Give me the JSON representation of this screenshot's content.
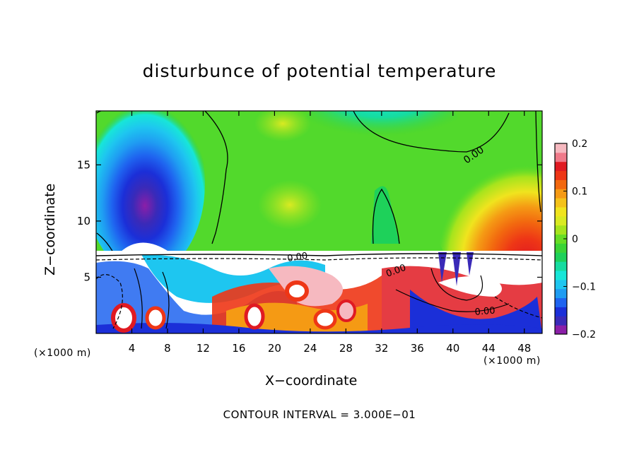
{
  "chart_data": {
    "type": "heatmap",
    "title": "disturbunce of potential temperature",
    "xlabel": "X−coordinate",
    "ylabel": "Z−coordinate",
    "x_unit_left": "(×1000 m)",
    "x_unit_right": "(×1000 m)",
    "x_ticks": [
      "4",
      "8",
      "12",
      "16",
      "20",
      "24",
      "28",
      "32",
      "36",
      "40",
      "44",
      "48"
    ],
    "x_tick_values": [
      4,
      8,
      12,
      16,
      20,
      24,
      28,
      32,
      36,
      40,
      44,
      48
    ],
    "y_ticks": [
      "5",
      "10",
      "15"
    ],
    "y_tick_values": [
      5,
      10,
      15
    ],
    "xlim": [
      0,
      50
    ],
    "ylim": [
      0,
      19.8
    ],
    "colorbar": {
      "tick_labels": [
        "0.2",
        "0.1",
        "0",
        "−0.1",
        "−0.2"
      ],
      "tick_values": [
        0.2,
        0.1,
        0,
        -0.1,
        -0.2
      ],
      "range": [
        -0.2,
        0.2
      ],
      "colors": [
        "#8b1fa8",
        "#3a2ab8",
        "#1b2fd8",
        "#1f64f0",
        "#1f9cf2",
        "#1ec6f0",
        "#17e6d8",
        "#16dca0",
        "#1ed15a",
        "#3ad436",
        "#66dd25",
        "#a6e41d",
        "#d9ea22",
        "#f0e41e",
        "#f4c21a",
        "#f59a14",
        "#f2680f",
        "#ee3616",
        "#e01a22",
        "#f07a8a",
        "#f6b9c0"
      ]
    },
    "contour_labels": [
      "0.00",
      "0.00",
      "0.00",
      "0.00"
    ],
    "contour_interval_text": "CONTOUR INTERVAL = 3.000E−01"
  }
}
